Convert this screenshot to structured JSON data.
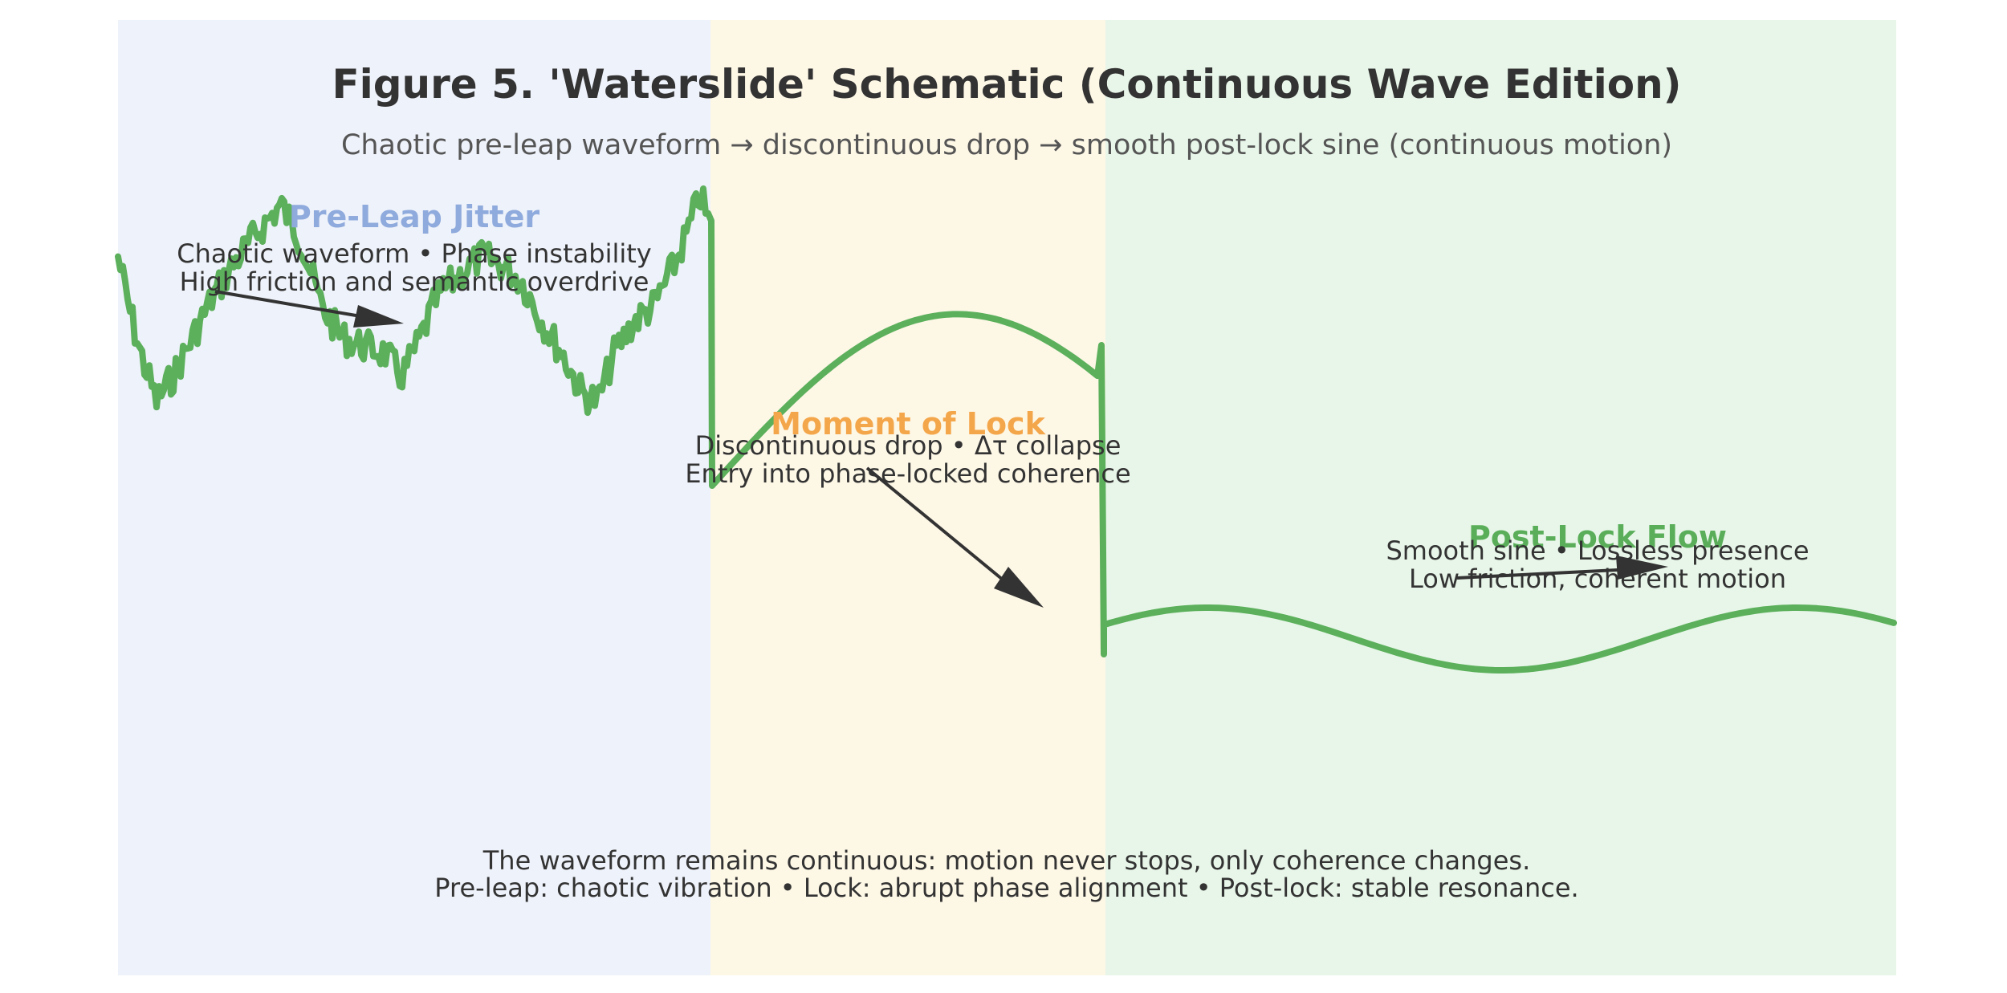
{
  "figure": {
    "title": "Figure 5. 'Waterslide' Schematic (Continuous Wave Edition)",
    "subtitle": "Chaotic pre-leap waveform → discontinuous drop → smooth post-lock sine (continuous motion)",
    "footer": {
      "line1": "The waveform remains continuous: motion never stops, only coherence changes.",
      "line2": "Pre-leap: chaotic vibration • Lock: abrupt phase alignment • Post-lock: stable resonance."
    }
  },
  "regions": [
    {
      "id": "pre-leap",
      "title": "Pre-Leap Jitter",
      "line1": "Chaotic waveform • Phase instability",
      "line2": "High friction and semantic overdrive",
      "fill": "#eef2fa",
      "title_color": "#8faadc"
    },
    {
      "id": "lock",
      "title": "Moment of Lock",
      "line1": "Discontinuous drop • Δτ collapse",
      "line2": "Entry into phase-locked coherence",
      "fill": "#fdf7e6",
      "title_color": "#f4a64a"
    },
    {
      "id": "post-lock",
      "title": "Post-Lock Flow",
      "line1": "Smooth sine • Lossless presence",
      "line2": "Low friction, coherent motion",
      "fill": "#e8f6e9",
      "title_color": "#5aae5a"
    }
  ],
  "colors": {
    "wave": "#5cb05c",
    "text": "#333333",
    "subtitle": "#555555",
    "arrow": "#333333"
  }
}
